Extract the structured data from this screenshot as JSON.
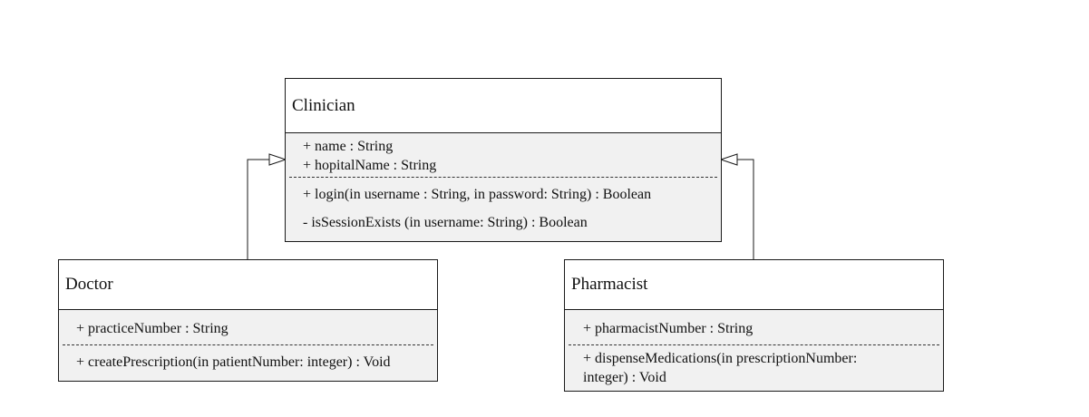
{
  "classes": {
    "clinician": {
      "name": "Clinician",
      "attributes": [
        "+ name : String",
        "+ hopitalName : String"
      ],
      "operations": [
        "+ login(in username : String, in password: String) : Boolean",
        "- isSessionExists (in username: String) : Boolean"
      ]
    },
    "doctor": {
      "name": "Doctor",
      "attributes": [
        "+ practiceNumber : String"
      ],
      "operations": [
        "+ createPrescription(in patientNumber: integer) : Void"
      ]
    },
    "pharmacist": {
      "name": "Pharmacist",
      "attributes": [
        "+ pharmacistNumber : String"
      ],
      "operations": [
        "+ dispenseMedications(in prescriptionNumber: integer) : Void"
      ]
    }
  },
  "relationships": [
    {
      "type": "generalization",
      "from": "Doctor",
      "to": "Clinician"
    },
    {
      "type": "generalization",
      "from": "Pharmacist",
      "to": "Clinician"
    }
  ]
}
